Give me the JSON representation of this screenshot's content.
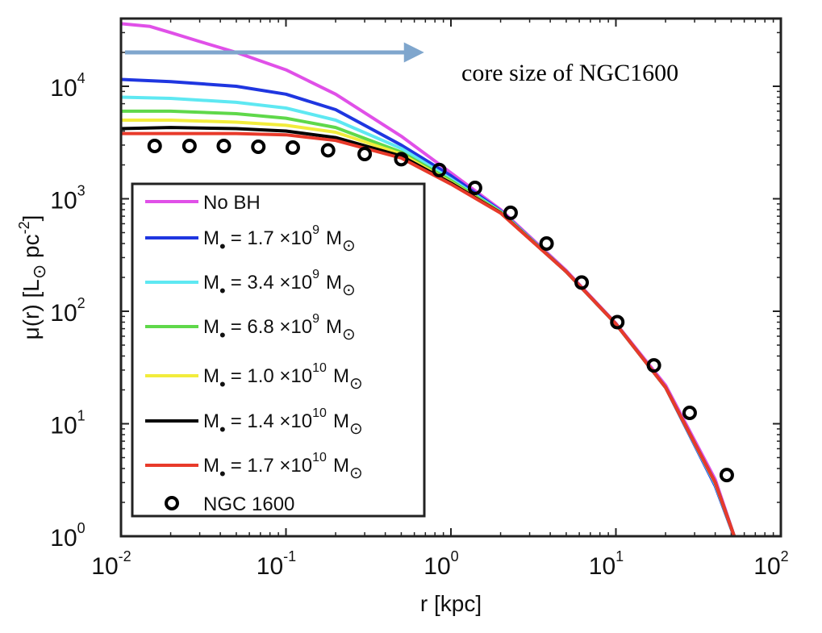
{
  "chart_data": {
    "type": "line",
    "xscale": "log",
    "yscale": "log",
    "xlim": [
      0.01,
      100
    ],
    "ylim": [
      1,
      40000
    ],
    "xlabel": "r [kpc]",
    "ylabel": {
      "prefix": "μ(r) [L",
      "sun": "⊙",
      "middle": " pc",
      "exp": "-2",
      "suffix": "]"
    },
    "xticks": [
      {
        "base": "10",
        "exp": "-2",
        "v": 0.01
      },
      {
        "base": "10",
        "exp": "-1",
        "v": 0.1
      },
      {
        "base": "10",
        "exp": "0",
        "v": 1
      },
      {
        "base": "10",
        "exp": "1",
        "v": 10
      },
      {
        "base": "10",
        "exp": "2",
        "v": 100
      }
    ],
    "yticks": [
      {
        "base": "10",
        "exp": "0",
        "v": 1
      },
      {
        "base": "10",
        "exp": "1",
        "v": 10
      },
      {
        "base": "10",
        "exp": "2",
        "v": 100
      },
      {
        "base": "10",
        "exp": "3",
        "v": 1000
      },
      {
        "base": "10",
        "exp": "4",
        "v": 10000
      }
    ],
    "annotation": {
      "text": "core size of NGC1600",
      "arrow_from_x": 0.01,
      "arrow_to_x": 0.65,
      "arrow_y": 20000,
      "arrow_color": "#7fa6cd"
    },
    "series": [
      {
        "label": "No BH",
        "color": "#e050e8",
        "x": [
          0.01,
          0.015,
          0.02,
          0.03,
          0.05,
          0.1,
          0.2,
          0.5,
          1,
          2,
          5,
          10,
          20,
          40,
          55
        ],
        "y": [
          36000,
          34000,
          30000,
          25000,
          20000,
          14000,
          8500,
          3600,
          1700,
          800,
          230,
          78,
          22,
          3.2,
          0.8
        ]
      },
      {
        "label_parts": {
          "m": "M",
          "eq": "= 1.7  ×10",
          "exp": "9",
          "unit": "M",
          "sun": "⊙"
        },
        "color": "#1f36e0",
        "x": [
          0.01,
          0.02,
          0.05,
          0.1,
          0.2,
          0.5,
          1,
          2,
          5,
          10,
          20,
          40,
          55
        ],
        "y": [
          11500,
          11000,
          10000,
          8500,
          6200,
          3000,
          1600,
          780,
          225,
          77,
          21,
          2.8,
          0.8
        ]
      },
      {
        "label_parts": {
          "m": "M",
          "eq": "= 3.4  ×10",
          "exp": "9",
          "unit": "M",
          "sun": "⊙"
        },
        "color": "#5ee8f2",
        "x": [
          0.01,
          0.02,
          0.05,
          0.1,
          0.2,
          0.5,
          1,
          2,
          5,
          10,
          20,
          40,
          55
        ],
        "y": [
          8000,
          7800,
          7200,
          6400,
          5000,
          2800,
          1500,
          770,
          225,
          77,
          21,
          2.9,
          0.8
        ]
      },
      {
        "label_parts": {
          "m": "M",
          "eq": "= 6.8  ×10",
          "exp": "9",
          "unit": "M",
          "sun": "⊙"
        },
        "color": "#5fd84a",
        "x": [
          0.01,
          0.02,
          0.05,
          0.1,
          0.2,
          0.5,
          1,
          2,
          5,
          10,
          20,
          40,
          55
        ],
        "y": [
          6000,
          6000,
          5700,
          5200,
          4300,
          2600,
          1450,
          760,
          225,
          77,
          21,
          3.0,
          0.8
        ]
      },
      {
        "label_parts": {
          "m": "M",
          "eq": "= 1.0  ×10",
          "exp": "10",
          "unit": "M",
          "sun": "⊙"
        },
        "color": "#f2ec3c",
        "x": [
          0.01,
          0.02,
          0.05,
          0.1,
          0.2,
          0.5,
          1,
          2,
          5,
          10,
          20,
          40,
          55
        ],
        "y": [
          5000,
          5000,
          4800,
          4500,
          3900,
          2500,
          1400,
          755,
          225,
          77,
          21,
          3.0,
          0.8
        ]
      },
      {
        "label_parts": {
          "m": "M",
          "eq": "= 1.4  ×10",
          "exp": "10",
          "unit": "M",
          "sun": "⊙"
        },
        "color": "#000000",
        "x": [
          0.01,
          0.02,
          0.05,
          0.1,
          0.2,
          0.5,
          1,
          2,
          5,
          10,
          20,
          40,
          55
        ],
        "y": [
          4200,
          4300,
          4200,
          4000,
          3500,
          2400,
          1380,
          750,
          225,
          77,
          21,
          3.0,
          0.8
        ]
      },
      {
        "label_parts": {
          "m": "M",
          "eq": "= 1.7  ×10",
          "exp": "10",
          "unit": "M",
          "sun": "⊙"
        },
        "color": "#e83a2a",
        "x": [
          0.01,
          0.02,
          0.05,
          0.1,
          0.2,
          0.5,
          1,
          2,
          5,
          10,
          20,
          40,
          55
        ],
        "y": [
          3800,
          3800,
          3800,
          3700,
          3300,
          2300,
          1350,
          745,
          225,
          77,
          21,
          3.0,
          0.8
        ]
      },
      {
        "label": "NGC 1600",
        "marker": "circle",
        "color": "#000000",
        "x": [
          0.016,
          0.026,
          0.042,
          0.068,
          0.11,
          0.18,
          0.3,
          0.5,
          0.85,
          1.4,
          2.3,
          3.8,
          6.2,
          10.2,
          17,
          28,
          47
        ],
        "y": [
          2950,
          2950,
          2950,
          2900,
          2850,
          2700,
          2500,
          2250,
          1800,
          1250,
          750,
          400,
          180,
          80,
          33,
          12.5,
          3.5
        ]
      }
    ]
  }
}
